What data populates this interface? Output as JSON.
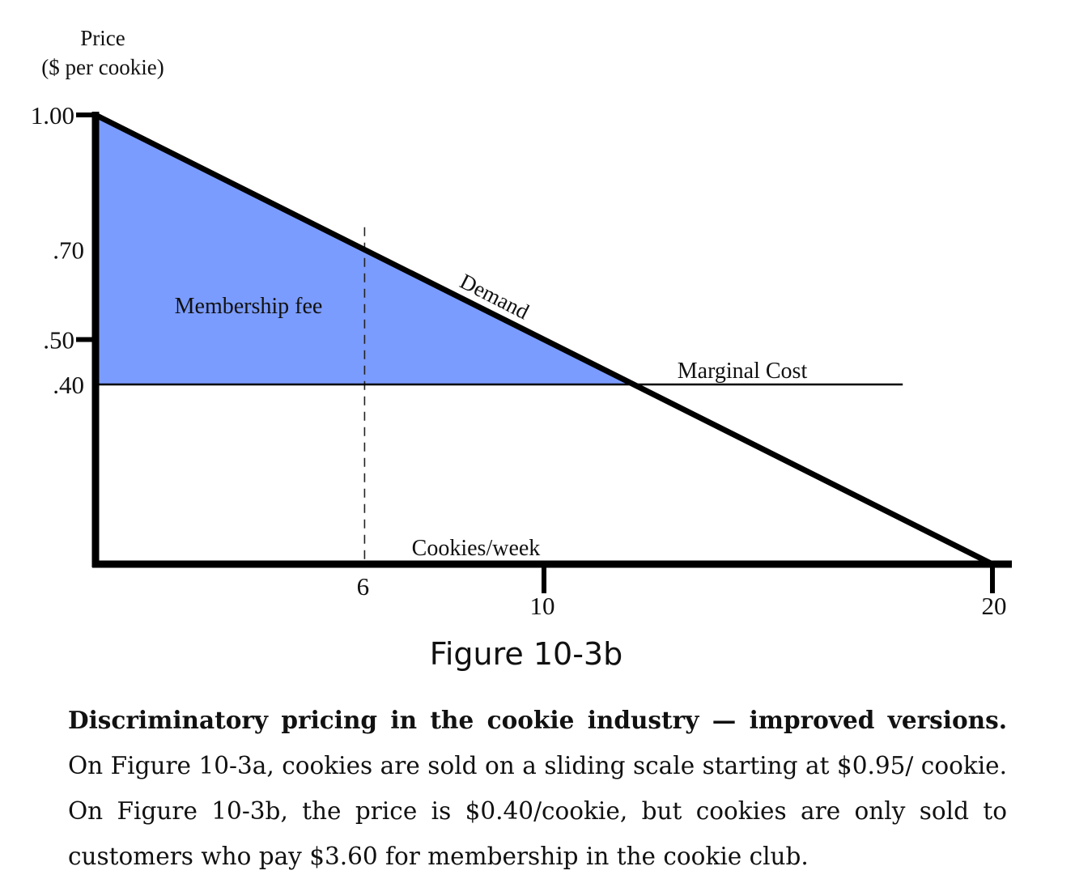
{
  "chart_data": {
    "type": "line",
    "ylabel": [
      "Price",
      "($ per cookie)"
    ],
    "xlabel": "Cookies/week",
    "xlim": [
      0,
      20
    ],
    "ylim": [
      0,
      1.0
    ],
    "y_ticks": [
      {
        "value": 1.0,
        "label": "1.00"
      },
      {
        "value": 0.7,
        "label": ".70"
      },
      {
        "value": 0.5,
        "label": ".50"
      },
      {
        "value": 0.4,
        "label": ".40"
      }
    ],
    "x_ticks": [
      {
        "value": 6,
        "label": "6"
      },
      {
        "value": 10,
        "label": "10"
      },
      {
        "value": 20,
        "label": "20"
      }
    ],
    "series": [
      {
        "name": "Demand",
        "x": [
          0,
          20
        ],
        "y": [
          1.0,
          0.0
        ]
      },
      {
        "name": "Marginal Cost",
        "x": [
          0,
          18
        ],
        "y": [
          0.4,
          0.4
        ]
      }
    ],
    "shaded_region": {
      "label": "Membership fee",
      "x": [
        0,
        0,
        12
      ],
      "y": [
        1.0,
        0.4,
        0.4
      ],
      "color": "#7b9cff"
    },
    "reference_line": {
      "x": 6,
      "y_range": [
        0,
        0.75
      ],
      "style": "dashed"
    }
  },
  "figure_title": "Figure 10-3b",
  "caption": {
    "bold": "Discriminatory pricing in the cookie industry — improved versions.",
    "text": " On Figure 10-3a, cookies are sold on a sliding scale starting at $0.95/ cookie. On Figure 10-3b, the price is $0.40/cookie, but cookies are only sold to customers who pay $3.60 for membership in the cookie club."
  }
}
